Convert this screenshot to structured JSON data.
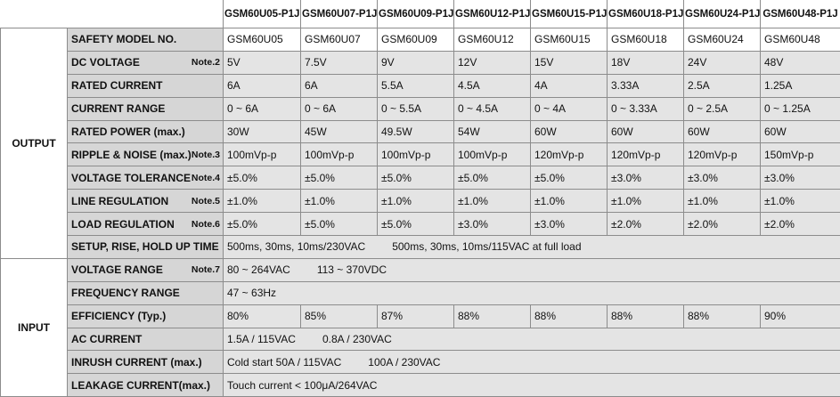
{
  "header": {
    "models": [
      "GSM60U05-P1J",
      "GSM60U07-P1J",
      "GSM60U09-P1J",
      "GSM60U12-P1J",
      "GSM60U15-P1J",
      "GSM60U18-P1J",
      "GSM60U24-P1J",
      "GSM60U48-P1J"
    ]
  },
  "groups": [
    {
      "label": "OUTPUT",
      "rows": [
        {
          "label": "SAFETY MODEL NO.",
          "values": [
            "GSM60U05",
            "GSM60U07",
            "GSM60U09",
            "GSM60U12",
            "GSM60U15",
            "GSM60U18",
            "GSM60U24",
            "GSM60U48"
          ]
        },
        {
          "label": "DC VOLTAGE",
          "note": "Note.2",
          "values": [
            "5V",
            "7.5V",
            "9V",
            "12V",
            "15V",
            "18V",
            "24V",
            "48V"
          ]
        },
        {
          "label": "RATED CURRENT",
          "values": [
            "6A",
            "6A",
            "5.5A",
            "4.5A",
            "4A",
            "3.33A",
            "2.5A",
            "1.25A"
          ]
        },
        {
          "label": "CURRENT RANGE",
          "values": [
            "0 ~ 6A",
            "0 ~ 6A",
            "0 ~ 5.5A",
            "0 ~ 4.5A",
            "0 ~ 4A",
            "0 ~ 3.33A",
            "0 ~ 2.5A",
            "0 ~ 1.25A"
          ]
        },
        {
          "label": "RATED POWER (max.)",
          "values": [
            "30W",
            "45W",
            "49.5W",
            "54W",
            "60W",
            "60W",
            "60W",
            "60W"
          ]
        },
        {
          "label": "RIPPLE & NOISE (max.)",
          "note": "Note.3",
          "values": [
            "100mVp-p",
            "100mVp-p",
            "100mVp-p",
            "100mVp-p",
            "120mVp-p",
            "120mVp-p",
            "120mVp-p",
            "150mVp-p"
          ]
        },
        {
          "label": "VOLTAGE TOLERANCE",
          "note": "Note.4",
          "values": [
            "±5.0%",
            "±5.0%",
            "±5.0%",
            "±5.0%",
            "±5.0%",
            "±3.0%",
            "±3.0%",
            "±3.0%"
          ]
        },
        {
          "label": "LINE REGULATION",
          "note": "Note.5",
          "values": [
            "±1.0%",
            "±1.0%",
            "±1.0%",
            "±1.0%",
            "±1.0%",
            "±1.0%",
            "±1.0%",
            "±1.0%"
          ]
        },
        {
          "label": "LOAD REGULATION",
          "note": "Note.6",
          "values": [
            "±5.0%",
            "±5.0%",
            "±5.0%",
            "±3.0%",
            "±3.0%",
            "±2.0%",
            "±2.0%",
            "±2.0%"
          ]
        },
        {
          "label": "SETUP, RISE, HOLD UP TIME",
          "text": [
            "500ms, 30ms, 10ms/230VAC",
            "500ms, 30ms, 10ms/115VAC  at full load"
          ]
        }
      ]
    },
    {
      "label": "INPUT",
      "rows": [
        {
          "label": "VOLTAGE RANGE",
          "note": "Note.7",
          "text": [
            "80 ~ 264VAC",
            "113 ~ 370VDC"
          ]
        },
        {
          "label": "FREQUENCY RANGE",
          "text": [
            "47 ~ 63Hz"
          ]
        },
        {
          "label": "EFFICIENCY (Typ.)",
          "values": [
            "80%",
            "85%",
            "87%",
            "88%",
            "88%",
            "88%",
            "88%",
            "90%"
          ]
        },
        {
          "label": "AC CURRENT",
          "text": [
            "1.5A / 115VAC",
            "0.8A / 230VAC"
          ]
        },
        {
          "label": "INRUSH CURRENT (max.)",
          "text": [
            "Cold start  50A / 115VAC",
            "100A / 230VAC"
          ]
        },
        {
          "label": "LEAKAGE CURRENT(max.)",
          "text": [
            "Touch current < 100μA/264VAC"
          ]
        }
      ]
    }
  ]
}
